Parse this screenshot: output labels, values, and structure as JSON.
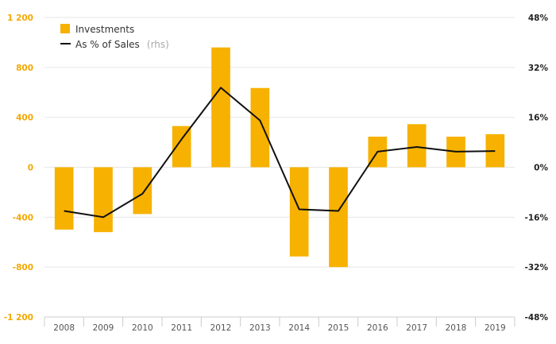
{
  "chart_data": {
    "type": "bar+line",
    "categories": [
      "2008",
      "2009",
      "2010",
      "2011",
      "2012",
      "2013",
      "2014",
      "2015",
      "2016",
      "2017",
      "2018",
      "2019"
    ],
    "series": [
      {
        "name": "Investments",
        "kind": "bar",
        "axis": "left",
        "color": "#f7b100",
        "values": [
          -500,
          -520,
          -375,
          330,
          960,
          635,
          -715,
          -800,
          245,
          345,
          245,
          265
        ]
      },
      {
        "name": "As % of Sales",
        "name_suffix": "(rhs)",
        "kind": "line",
        "axis": "right",
        "color": "#111111",
        "values": [
          -14,
          -16,
          -8.5,
          9,
          25.5,
          15,
          -13.5,
          -14,
          5,
          6.5,
          5,
          5.2
        ]
      }
    ],
    "left_axis": {
      "ticks": [
        -1200,
        -800,
        -400,
        0,
        400,
        800,
        1200
      ],
      "tick_labels": [
        "-1 200",
        "-800",
        "-400",
        "0",
        "400",
        "800",
        "1 200"
      ],
      "ylim": [
        -1200,
        1200
      ],
      "label_color": "#f5a800"
    },
    "right_axis": {
      "ticks": [
        -48,
        -32,
        -16,
        0,
        16,
        32,
        48
      ],
      "tick_labels": [
        "-48%",
        "-32%",
        "-16%",
        "0%",
        "16%",
        "32%",
        "48%"
      ],
      "ylim": [
        -48,
        48
      ]
    },
    "grid": true,
    "legend_position": "top-left"
  }
}
